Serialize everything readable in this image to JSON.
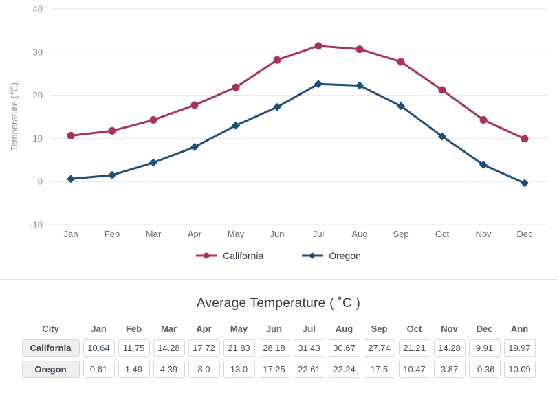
{
  "chart_data": {
    "type": "line",
    "categories": [
      "Jan",
      "Feb",
      "Mar",
      "Apr",
      "May",
      "Jun",
      "Jul",
      "Aug",
      "Sep",
      "Oct",
      "Nov",
      "Dec"
    ],
    "series": [
      {
        "name": "California",
        "marker": "circle",
        "color": "#aa3355",
        "values": [
          10.64,
          11.75,
          14.28,
          17.72,
          21.83,
          28.18,
          31.43,
          30.67,
          27.74,
          21.21,
          14.28,
          9.91
        ]
      },
      {
        "name": "Oregon",
        "marker": "diamond",
        "color": "#1f4e79",
        "values": [
          0.61,
          1.49,
          4.39,
          8.0,
          13.0,
          17.25,
          22.61,
          22.24,
          17.5,
          10.47,
          3.87,
          -0.36
        ]
      }
    ],
    "xlabel": "",
    "ylabel": "Temperature (℃)",
    "ylim": [
      -10,
      40
    ],
    "yticks": [
      -10,
      0,
      10,
      20,
      30,
      40
    ],
    "grid": true,
    "legend_position": "bottom"
  },
  "table": {
    "title": "Average Temperature ( ˚C )",
    "headers": [
      "City",
      "Jan",
      "Feb",
      "Mar",
      "Apr",
      "May",
      "Jun",
      "Jul",
      "Aug",
      "Sep",
      "Oct",
      "Nov",
      "Dec",
      "Ann"
    ],
    "rows": [
      {
        "city": "California",
        "values": [
          "10.64",
          "11.75",
          "14.28",
          "17.72",
          "21.83",
          "28.18",
          "31.43",
          "30.67",
          "27.74",
          "21.21",
          "14.28",
          "9.91",
          "19.97"
        ]
      },
      {
        "city": "Oregon",
        "values": [
          "0.61",
          "1.49",
          "4.39",
          "8.0",
          "13.0",
          "17.25",
          "22.61",
          "22.24",
          "17.5",
          "10.47",
          "3.87",
          "-0.36",
          "10.09"
        ]
      }
    ]
  },
  "colors": {
    "grid": "#e7e7e7",
    "y_tick_label": "#8b8b8b",
    "x_tick_label": "#5f6b76",
    "axis_title": "#8f959c",
    "divider": "#e2e2e2"
  }
}
